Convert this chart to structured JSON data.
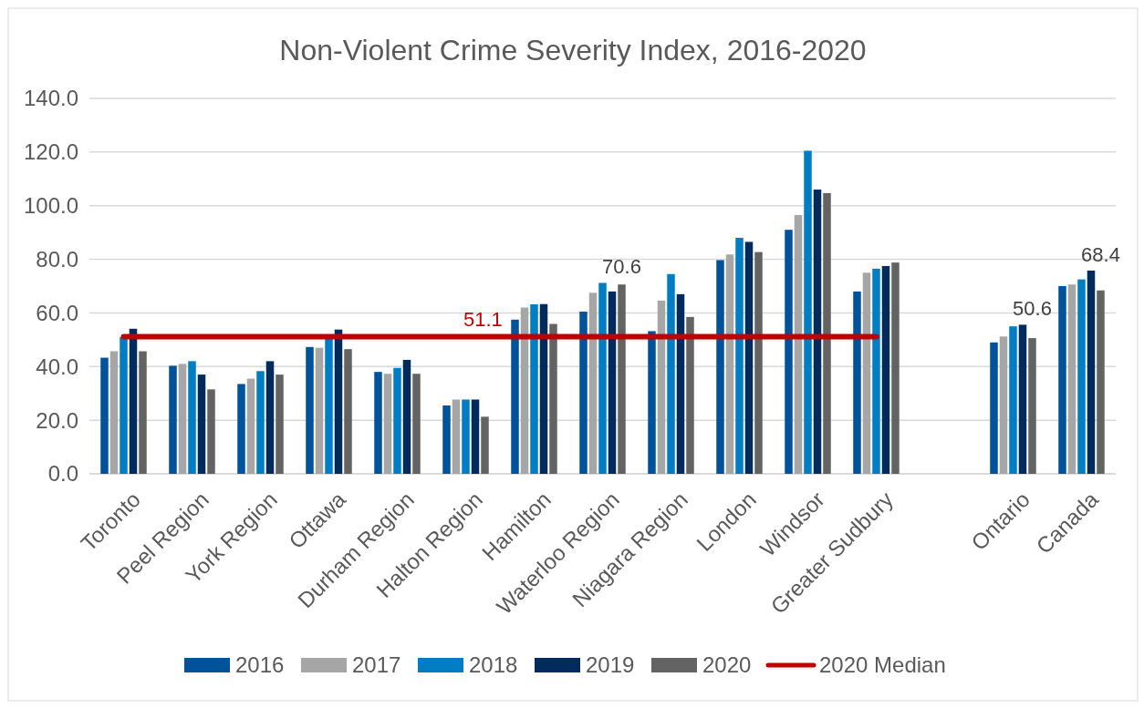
{
  "chart_data": {
    "type": "bar",
    "title": "Non-Violent Crime Severity Index, 2016-2020",
    "categories": [
      "Toronto",
      "Peel Region",
      "York Region",
      "Ottawa",
      "Durham Region",
      "Halton Region",
      "Hamilton",
      "Waterloo Region",
      "Niagara Region",
      "London",
      "Windsor",
      "Greater Sudbury",
      null,
      "Ontario",
      "Canada"
    ],
    "series": [
      {
        "name": "2016",
        "color": "#00529b",
        "values": [
          43.3,
          40.3,
          33.5,
          47.3,
          38.0,
          25.5,
          57.5,
          60.5,
          53.2,
          79.7,
          91.0,
          68.0,
          null,
          49.0,
          70.0
        ]
      },
      {
        "name": "2017",
        "color": "#a6a6a6",
        "values": [
          45.7,
          41.0,
          35.5,
          47.0,
          37.3,
          27.7,
          62.0,
          67.5,
          64.6,
          81.8,
          96.5,
          75.0,
          null,
          51.2,
          70.6
        ]
      },
      {
        "name": "2018",
        "color": "#007dc3",
        "values": [
          51.0,
          42.0,
          38.3,
          51.0,
          39.5,
          27.7,
          63.2,
          71.2,
          74.5,
          88.0,
          120.5,
          76.5,
          null,
          55.0,
          72.5
        ]
      },
      {
        "name": "2019",
        "color": "#002b5c",
        "values": [
          54.1,
          37.0,
          42.0,
          53.8,
          42.5,
          27.7,
          63.3,
          68.0,
          67.0,
          86.5,
          106.0,
          77.5,
          null,
          55.6,
          75.8
        ]
      },
      {
        "name": "2020",
        "color": "#636363",
        "values": [
          45.7,
          31.5,
          37.0,
          46.5,
          37.3,
          21.3,
          55.9,
          70.6,
          58.5,
          82.7,
          104.7,
          78.8,
          null,
          50.6,
          68.4
        ],
        "value_labels": [
          null,
          null,
          null,
          null,
          null,
          null,
          null,
          "70.6",
          null,
          null,
          null,
          null,
          null,
          "50.6",
          "68.4"
        ]
      },
      {
        "name": "2020 Median",
        "type": "line",
        "color": "#c00000",
        "values": [
          51.1,
          51.1,
          51.1,
          51.1,
          51.1,
          51.1,
          51.1,
          51.1,
          51.1,
          51.1,
          51.1,
          51.1,
          null,
          null,
          null
        ]
      }
    ],
    "annotations": [
      {
        "text": "51.1",
        "y": 51.1
      }
    ],
    "ylim": [
      0,
      140
    ],
    "yticks": [
      {
        "value": 0,
        "label": "0.0"
      },
      {
        "value": 20,
        "label": "20.0"
      },
      {
        "value": 40,
        "label": "40.0"
      },
      {
        "value": 60,
        "label": "60.0"
      },
      {
        "value": 80,
        "label": "80.0"
      },
      {
        "value": 100,
        "label": "100.0"
      },
      {
        "value": 120,
        "label": "120.0"
      },
      {
        "value": 140,
        "label": "140.0"
      }
    ],
    "grid": "y",
    "legend": "bottom"
  }
}
